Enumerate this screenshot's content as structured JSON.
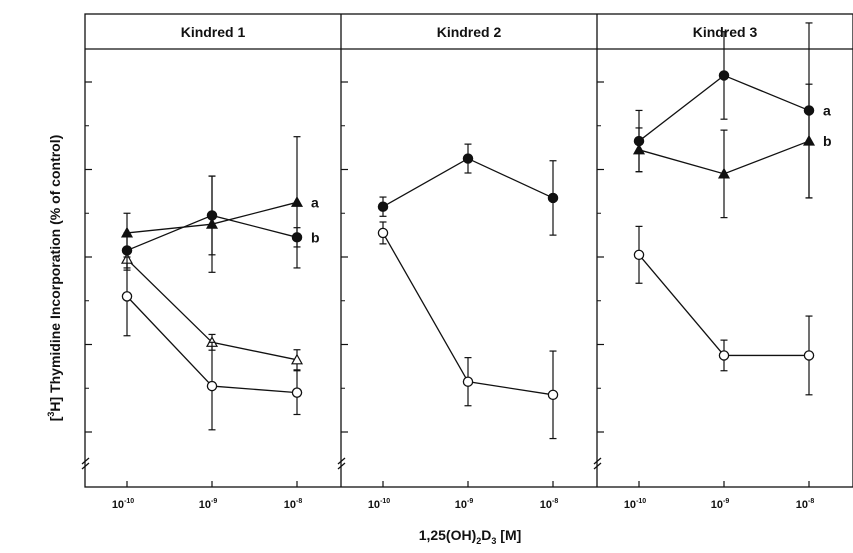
{
  "chart_data": {
    "type": "line",
    "ylabel_pre": "[",
    "ylabel_sup": "3",
    "ylabel_main": "H] Thymidine Incorporation (% of control)",
    "xlabel_pre": "1,25(OH)",
    "xlabel_sub1": "2",
    "xlabel_mid": "D",
    "xlabel_sub2": "3",
    "xlabel_post": " [M]",
    "ylim": [
      28,
      127
    ],
    "yticks": [
      40,
      60,
      80,
      100,
      120
    ],
    "x_ticks": [
      {
        "base": "10",
        "exp": "-10"
      },
      {
        "base": "10",
        "exp": "-9"
      },
      {
        "base": "10",
        "exp": "-8"
      }
    ],
    "panels": [
      {
        "title": "Kindred 1",
        "series": [
          {
            "marker": "filled-triangle",
            "label": "a",
            "x": [
              0,
              1,
              2
            ],
            "y": [
              85.5,
              87.5,
              92.5
            ],
            "err": [
              4.5,
              11,
              15
            ]
          },
          {
            "marker": "filled-circle",
            "label": "b",
            "x": [
              0,
              1,
              2
            ],
            "y": [
              81.5,
              89.5,
              84.5
            ],
            "err": [
              4,
              9,
              2.2
            ]
          },
          {
            "marker": "open-triangle",
            "label": "",
            "x": [
              0,
              1,
              2
            ],
            "y": [
              79.5,
              60.5,
              56.5
            ],
            "err": [
              2.5,
              1.8,
              2.3
            ]
          },
          {
            "marker": "open-circle",
            "label": "",
            "x": [
              0,
              1,
              2
            ],
            "y": [
              71,
              50.5,
              49
            ],
            "err": [
              9,
              10,
              5
            ]
          }
        ]
      },
      {
        "title": "Kindred 2",
        "series": [
          {
            "marker": "filled-circle",
            "label": "",
            "x": [
              0,
              1,
              2
            ],
            "y": [
              91.5,
              102.5,
              93.5
            ],
            "err": [
              2.2,
              3.3,
              8.5
            ]
          },
          {
            "marker": "open-circle",
            "label": "",
            "x": [
              0,
              1,
              2
            ],
            "y": [
              85.5,
              51.5,
              48.5
            ],
            "err": [
              2.5,
              5.5,
              10
            ]
          }
        ]
      },
      {
        "title": "Kindred 3",
        "series": [
          {
            "marker": "filled-circle",
            "label": "a",
            "x": [
              0,
              1,
              2
            ],
            "y": [
              106.5,
              121.5,
              113.5
            ],
            "err": [
              7,
              10,
              20
            ]
          },
          {
            "marker": "filled-triangle",
            "label": "b",
            "x": [
              0,
              1,
              2
            ],
            "y": [
              104.5,
              99,
              106.5
            ],
            "err": [
              5,
              10,
              13
            ]
          },
          {
            "marker": "open-circle",
            "label": "",
            "x": [
              0,
              1,
              2
            ],
            "y": [
              80.5,
              57.5,
              57.5
            ],
            "err": [
              6.5,
              3.5,
              9
            ]
          }
        ]
      }
    ]
  }
}
